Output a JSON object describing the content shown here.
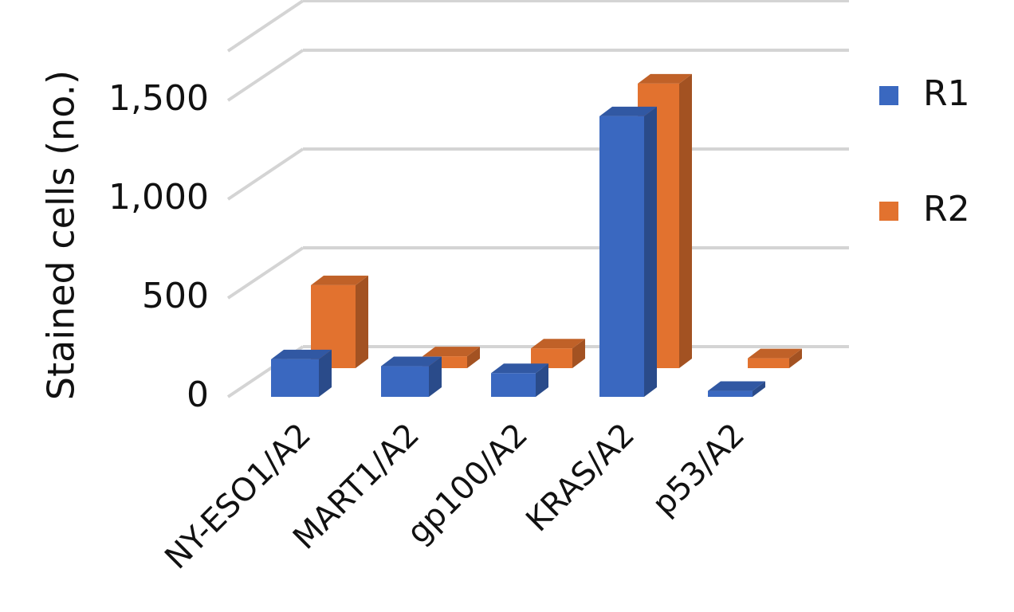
{
  "chart_data": {
    "type": "bar",
    "style": "3d-clustered-column",
    "title": "",
    "xlabel": "",
    "ylabel": "Stained cells (no.)",
    "categories": [
      "NY-ESO1/A2",
      "MART1/A2",
      "gp100/A2",
      "KRAS/A2",
      "p53/A2"
    ],
    "series": [
      {
        "name": "R1",
        "color": "#3a68c0",
        "values": [
          190,
          155,
          120,
          1420,
          30
        ]
      },
      {
        "name": "R2",
        "color": "#e2722f",
        "values": [
          420,
          60,
          100,
          1440,
          50
        ]
      }
    ],
    "yticks": [
      0,
      500,
      1000,
      1500
    ],
    "ytick_labels": [
      "0",
      "500",
      "1,000",
      "1,500"
    ],
    "ylim": [
      0,
      1750
    ],
    "grid": true,
    "legend": "right"
  }
}
